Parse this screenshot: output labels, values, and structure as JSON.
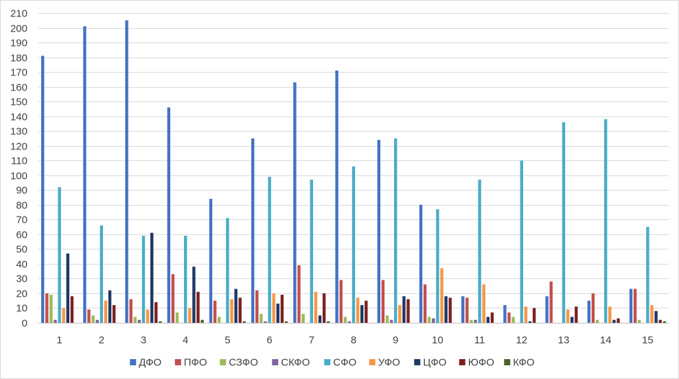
{
  "chart_data": {
    "type": "bar",
    "categories": [
      "1",
      "2",
      "3",
      "4",
      "5",
      "6",
      "7",
      "8",
      "9",
      "10",
      "11",
      "12",
      "13",
      "14",
      "15"
    ],
    "ylim": [
      0,
      210
    ],
    "ytick_step": 10,
    "grid": true,
    "legend_position": "bottom",
    "title": "",
    "xlabel": "",
    "ylabel": "",
    "series": [
      {
        "name": "ДФО",
        "color": "#4472C4",
        "values": [
          181,
          201,
          205,
          146,
          84,
          125,
          163,
          171,
          124,
          80,
          18,
          12,
          18,
          15,
          23
        ]
      },
      {
        "name": "ПФО",
        "color": "#C0504D",
        "values": [
          20,
          9,
          16,
          33,
          15,
          22,
          39,
          29,
          29,
          26,
          17,
          7,
          28,
          20,
          23
        ]
      },
      {
        "name": "СЗФО",
        "color": "#9BBB59",
        "values": [
          19,
          5,
          4,
          7,
          4,
          6,
          6,
          4,
          5,
          4,
          2,
          4,
          0,
          2,
          2
        ]
      },
      {
        "name": "СКФО",
        "color": "#8064A2",
        "values": [
          2,
          2,
          2,
          0,
          0,
          1,
          0,
          1,
          2,
          3,
          2,
          0,
          0,
          0,
          0
        ]
      },
      {
        "name": "СФО",
        "color": "#4BACC6",
        "values": [
          92,
          66,
          59,
          59,
          71,
          99,
          97,
          106,
          125,
          77,
          97,
          110,
          136,
          138,
          65
        ]
      },
      {
        "name": "УФО",
        "color": "#F79646",
        "values": [
          10,
          15,
          9,
          10,
          16,
          20,
          21,
          17,
          12,
          37,
          26,
          11,
          9,
          11,
          12
        ]
      },
      {
        "name": "ЦФО",
        "color": "#1F3864",
        "values": [
          47,
          22,
          61,
          38,
          23,
          13,
          5,
          12,
          18,
          18,
          4,
          1,
          4,
          2,
          8
        ]
      },
      {
        "name": "ЮФО",
        "color": "#7B2121",
        "values": [
          18,
          12,
          14,
          21,
          17,
          19,
          20,
          15,
          16,
          17,
          7,
          10,
          11,
          3,
          2
        ]
      },
      {
        "name": "КФО",
        "color": "#4F6228",
        "values": [
          0,
          0,
          1,
          2,
          1,
          1,
          1,
          0,
          0,
          0,
          0,
          0,
          0,
          0,
          1
        ]
      }
    ]
  }
}
